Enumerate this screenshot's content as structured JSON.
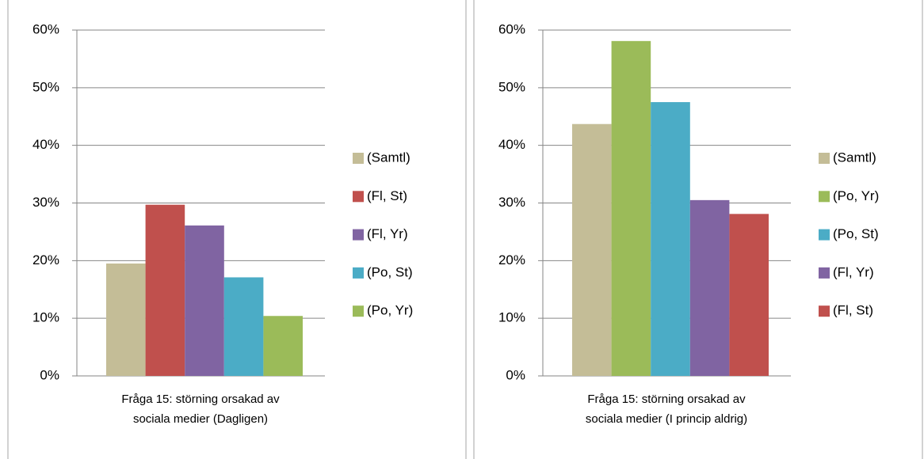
{
  "chart_data": [
    {
      "type": "bar",
      "categories": [
        "Fråga 15: störning orsakad av sociala medier (Dagligen)"
      ],
      "series": [
        {
          "name": "(Samtl)",
          "color": "#c4bd97",
          "values": [
            19.5
          ]
        },
        {
          "name": "(Fl, St)",
          "color": "#c0504d",
          "values": [
            29.7
          ]
        },
        {
          "name": "(Fl, Yr)",
          "color": "#8064a2",
          "values": [
            26.1
          ]
        },
        {
          "name": "(Po, St)",
          "color": "#4bacc6",
          "values": [
            17.1
          ]
        },
        {
          "name": "(Po, Yr)",
          "color": "#9bbb59",
          "values": [
            10.4
          ]
        }
      ],
      "ylim": [
        0,
        60
      ],
      "yticks": [
        {
          "value": 0,
          "label": "0%"
        },
        {
          "value": 10,
          "label": "10%"
        },
        {
          "value": 20,
          "label": "20%"
        },
        {
          "value": 30,
          "label": "30%"
        },
        {
          "value": 40,
          "label": "40%"
        },
        {
          "value": 50,
          "label": "50%"
        },
        {
          "value": 60,
          "label": "60%"
        }
      ],
      "grid": true,
      "legend": "right"
    },
    {
      "type": "bar",
      "categories": [
        "Fråga 15: störning orsakad av sociala medier (I princip aldrig)"
      ],
      "series": [
        {
          "name": "(Samtl)",
          "color": "#c4bd97",
          "values": [
            43.7
          ]
        },
        {
          "name": "(Po, Yr)",
          "color": "#9bbb59",
          "values": [
            58.1
          ]
        },
        {
          "name": "(Po, St)",
          "color": "#4bacc6",
          "values": [
            47.5
          ]
        },
        {
          "name": "(Fl, Yr)",
          "color": "#8064a2",
          "values": [
            30.5
          ]
        },
        {
          "name": "(Fl, St)",
          "color": "#c0504d",
          "values": [
            28.1
          ]
        }
      ],
      "ylim": [
        0,
        60
      ],
      "yticks": [
        {
          "value": 0,
          "label": "0%"
        },
        {
          "value": 10,
          "label": "10%"
        },
        {
          "value": 20,
          "label": "20%"
        },
        {
          "value": 30,
          "label": "30%"
        },
        {
          "value": 40,
          "label": "40%"
        },
        {
          "value": 50,
          "label": "50%"
        },
        {
          "value": 60,
          "label": "60%"
        }
      ],
      "grid": true,
      "legend": "right"
    }
  ]
}
